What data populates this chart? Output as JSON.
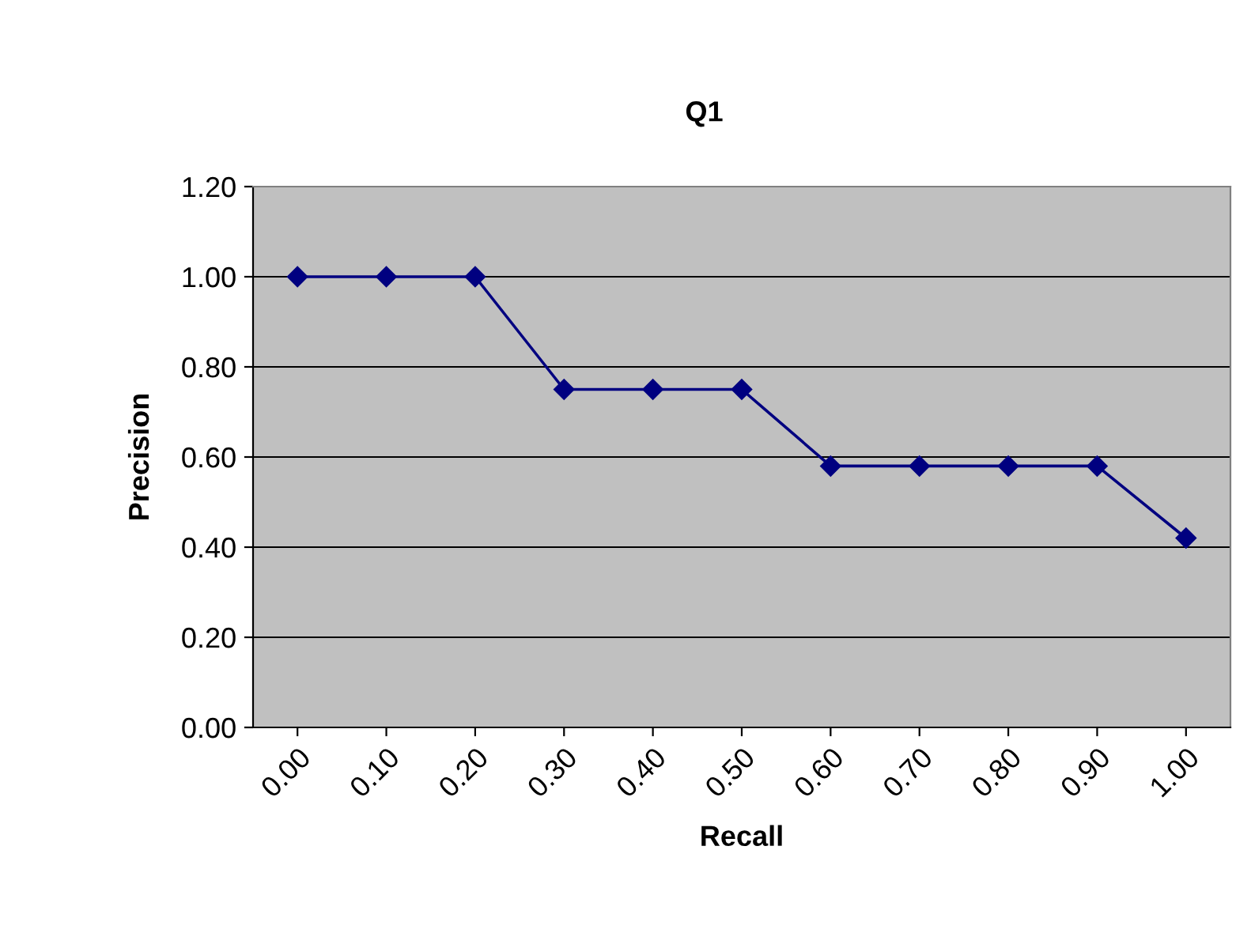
{
  "chart_data": {
    "type": "line",
    "title": "Q1",
    "xlabel": "Recall",
    "ylabel": "Precision",
    "categories": [
      "0.00",
      "0.10",
      "0.20",
      "0.30",
      "0.40",
      "0.50",
      "0.60",
      "0.70",
      "0.80",
      "0.90",
      "1.00"
    ],
    "series": [
      {
        "color": "#000080",
        "values": [
          1.0,
          1.0,
          1.0,
          0.75,
          0.75,
          0.75,
          0.58,
          0.58,
          0.58,
          0.58,
          0.42
        ]
      }
    ],
    "ylim": [
      0,
      1.2
    ],
    "yticks": [
      {
        "value": 0,
        "label": "0.00"
      },
      {
        "value": 0.2,
        "label": "0.20"
      },
      {
        "value": 0.4,
        "label": "0.40"
      },
      {
        "value": 0.6,
        "label": "0.60"
      },
      {
        "value": 0.8,
        "label": "0.80"
      },
      {
        "value": 1.0,
        "label": "1.00"
      },
      {
        "value": 1.2,
        "label": "1.20"
      }
    ],
    "grid": "y",
    "marker": "diamond",
    "line_style": "solid",
    "legend": false
  }
}
